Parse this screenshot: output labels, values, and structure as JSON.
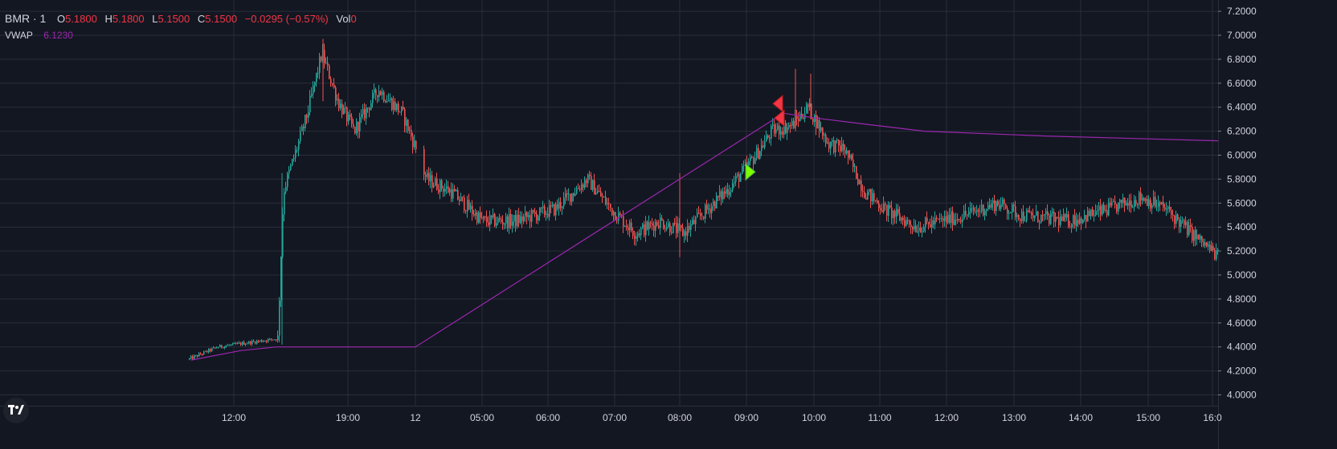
{
  "header": {
    "symbol": "BMR · 1",
    "open_label": "O",
    "open": "5.1800",
    "high_label": "H",
    "high": "5.1800",
    "low_label": "L",
    "low": "5.1500",
    "close_label": "C",
    "close": "5.1500",
    "change": "−0.0295 (−0.57%)",
    "vol_label": "Vol",
    "vol": "0"
  },
  "indicator": {
    "name": "VWAP",
    "value": "6.1230"
  },
  "colors": {
    "background": "#131722",
    "grid": "#2a2e39",
    "text": "#d1d4dc",
    "up": "#26a69a",
    "down": "#ef5350",
    "vwap": "#9c27b0",
    "sell_marker": "#f23645",
    "buy_marker": "#7cfc00"
  },
  "chart_data": {
    "type": "candlestick",
    "title": "",
    "ylim": [
      3.9,
      7.25
    ],
    "y_ticks": [
      "7.2000",
      "7.0000",
      "6.8000",
      "6.6000",
      "6.4000",
      "6.2000",
      "6.0000",
      "5.8000",
      "5.6000",
      "5.4000",
      "5.2000",
      "5.0000",
      "4.8000",
      "4.6000",
      "4.4000",
      "4.2000",
      "4.0000"
    ],
    "x_ticks": [
      "12:00",
      "19:00",
      "12",
      "05:00",
      "06:00",
      "07:00",
      "08:00",
      "09:00",
      "10:00",
      "11:00",
      "12:00",
      "13:00",
      "14:00",
      "15:00",
      "16:0"
    ],
    "price_path": [
      {
        "t": 235,
        "p": 4.3
      },
      {
        "t": 270,
        "p": 4.4
      },
      {
        "t": 345,
        "p": 4.47
      },
      {
        "t": 352,
        "p": 5.7
      },
      {
        "t": 380,
        "p": 6.3
      },
      {
        "t": 400,
        "p": 6.85
      },
      {
        "t": 420,
        "p": 6.45
      },
      {
        "t": 440,
        "p": 6.2
      },
      {
        "t": 470,
        "p": 6.55
      },
      {
        "t": 500,
        "p": 6.35
      },
      {
        "t": 520,
        "p": 6.0
      },
      {
        "t": 530,
        "p": 5.8
      },
      {
        "t": 560,
        "p": 5.7
      },
      {
        "t": 600,
        "p": 5.45
      },
      {
        "t": 640,
        "p": 5.45
      },
      {
        "t": 690,
        "p": 5.55
      },
      {
        "t": 730,
        "p": 5.8
      },
      {
        "t": 760,
        "p": 5.55
      },
      {
        "t": 790,
        "p": 5.35
      },
      {
        "t": 820,
        "p": 5.45
      },
      {
        "t": 850,
        "p": 5.35
      },
      {
        "t": 880,
        "p": 5.55
      },
      {
        "t": 910,
        "p": 5.75
      },
      {
        "t": 940,
        "p": 6.0
      },
      {
        "t": 960,
        "p": 6.2
      },
      {
        "t": 985,
        "p": 6.25
      },
      {
        "t": 1005,
        "p": 6.4
      },
      {
        "t": 1030,
        "p": 6.1
      },
      {
        "t": 1050,
        "p": 6.05
      },
      {
        "t": 1075,
        "p": 5.7
      },
      {
        "t": 1100,
        "p": 5.55
      },
      {
        "t": 1140,
        "p": 5.4
      },
      {
        "t": 1200,
        "p": 5.5
      },
      {
        "t": 1240,
        "p": 5.6
      },
      {
        "t": 1270,
        "p": 5.5
      },
      {
        "t": 1330,
        "p": 5.45
      },
      {
        "t": 1380,
        "p": 5.55
      },
      {
        "t": 1420,
        "p": 5.65
      },
      {
        "t": 1450,
        "p": 5.55
      },
      {
        "t": 1490,
        "p": 5.3
      },
      {
        "t": 1516,
        "p": 5.15
      }
    ],
    "vwap": [
      {
        "t": 238,
        "p": 4.29
      },
      {
        "t": 300,
        "p": 4.37
      },
      {
        "t": 345,
        "p": 4.4
      },
      {
        "t": 517,
        "p": 4.4
      },
      {
        "t": 975,
        "p": 6.35
      },
      {
        "t": 1015,
        "p": 6.31
      },
      {
        "t": 1075,
        "p": 6.26
      },
      {
        "t": 1150,
        "p": 6.2
      },
      {
        "t": 1300,
        "p": 6.16
      },
      {
        "t": 1516,
        "p": 6.12
      }
    ],
    "sell_markers": [
      {
        "t": 968,
        "p": 6.43
      },
      {
        "t": 970,
        "p": 6.31
      }
    ],
    "buy_markers": [
      {
        "t": 933,
        "p": 5.86
      }
    ]
  }
}
